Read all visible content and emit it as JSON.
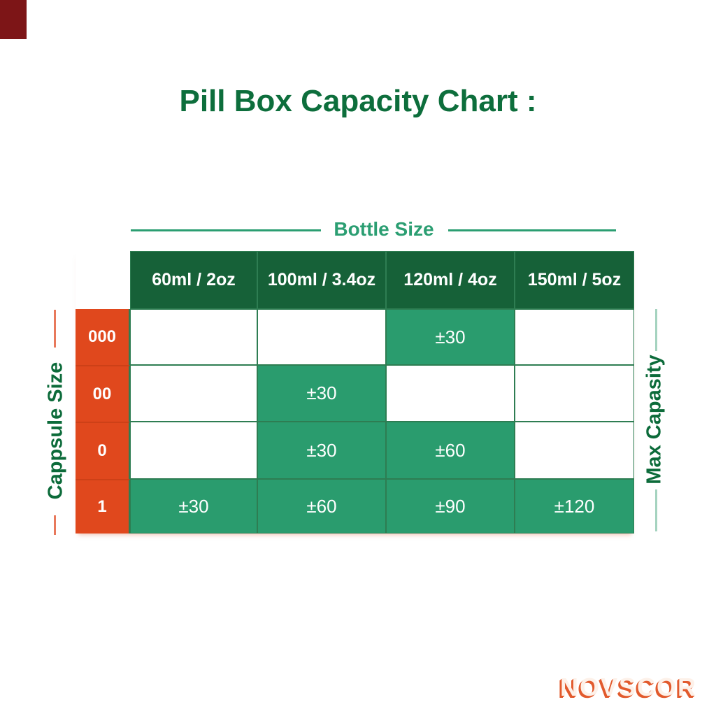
{
  "title": "Pill Box Capacity Chart :",
  "watermark": "NOVSCOR",
  "chart_data": {
    "type": "table",
    "title": "Pill Box Capacity Chart :",
    "column_group_label": "Bottle Size",
    "row_group_label": "Cappsule Size",
    "value_group_label": "Max Capasity",
    "columns": [
      "60ml / 2oz",
      "100ml / 3.4oz",
      "120ml / 4oz",
      "150ml / 5oz"
    ],
    "rows": [
      "000",
      "00",
      "0",
      "1"
    ],
    "cells": [
      [
        "",
        "",
        "±30",
        ""
      ],
      [
        "",
        "±30",
        "",
        ""
      ],
      [
        "",
        "±30",
        "±60",
        ""
      ],
      [
        "±30",
        "±60",
        "±90",
        "±120"
      ]
    ]
  },
  "colors": {
    "title_green": "#0d6e3c",
    "group_label_green": "#2b9e72",
    "side_label_green": "#0c6b3a",
    "header_bg_green": "#166138",
    "filled_cell_green": "#2a9c6e",
    "grid_border_green": "#2e7d52",
    "row_header_orange": "#e0481d",
    "salmon_line": "#e8795c",
    "light_green_line": "#a5d3bf",
    "watermark_fill": "#fdf1e9",
    "watermark_shadow_orange": "#e25a2d",
    "corner_accent_red": "#7d1517"
  }
}
